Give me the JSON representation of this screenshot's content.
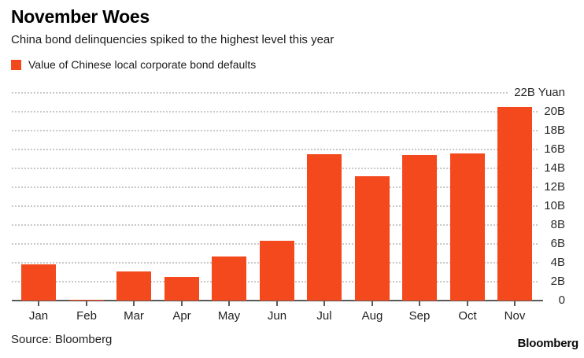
{
  "header": {
    "title": "November Woes",
    "subtitle": "China bond delinquencies spiked to the highest level this year"
  },
  "legend": {
    "label": "Value of Chinese local corporate bond defaults",
    "swatch_color": "#F4481D"
  },
  "chart_data": {
    "type": "bar",
    "title": "November Woes",
    "categories": [
      "Jan",
      "Feb",
      "Mar",
      "Apr",
      "May",
      "Jun",
      "Jul",
      "Aug",
      "Sep",
      "Oct",
      "Nov"
    ],
    "values": [
      3.8,
      0.1,
      3.1,
      2.5,
      4.7,
      6.3,
      15.5,
      13.2,
      15.4,
      15.6,
      20.5
    ],
    "series_name": "Value of Chinese local corporate bond defaults",
    "unit": "Yuan (billions)",
    "ylim": [
      0,
      22
    ],
    "ytick_step": 2,
    "ytick_labels": [
      "0",
      "2B",
      "4B",
      "6B",
      "8B",
      "10B",
      "12B",
      "14B",
      "16B",
      "18B",
      "20B",
      "22B Yuan"
    ],
    "bar_color": "#F4481D",
    "gridline_style": "dotted",
    "gridline_color": "#c9c9c9",
    "axis_color": "#5a5a5a",
    "legend_position": "top-left",
    "yaxis_side": "right"
  },
  "footer": {
    "source": "Source: Bloomberg",
    "logo": "Bloomberg"
  }
}
